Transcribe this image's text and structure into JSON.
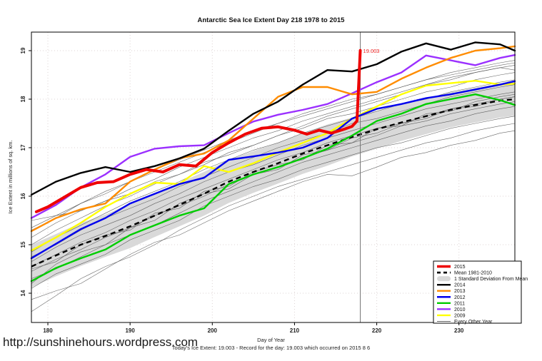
{
  "page": {
    "url_watermark": "http://sunshinehours.wordpress.com"
  },
  "chart_data": {
    "type": "line",
    "title": "Antarctic Sea Ice Extent Day 218 1978 to 2015",
    "xlabel": "Day of Year",
    "ylabel": "Ice Extent in millions of sq. km.",
    "status_line": "Today's Ice Extent: 19.003  - Record for the day: 19.003 which occurred on 2015 8 6",
    "x_ticks": [
      180,
      190,
      200,
      210,
      220,
      230
    ],
    "y_ticks": [
      14,
      15,
      16,
      17,
      18,
      19
    ],
    "x_range": [
      178,
      236.8
    ],
    "y_range": [
      13.4,
      19.39
    ],
    "grid": true,
    "legend_position": "bottom-right",
    "vline_day": 218,
    "annotation": {
      "text": "19.003",
      "day": 218,
      "value": 19.003,
      "color": "#ee2222"
    },
    "colors": {
      "y2015": "#ee0000",
      "y2014": "#000000",
      "y2013": "#ff8c00",
      "y2012": "#0000ee",
      "y2011": "#00cd00",
      "y2010": "#9b30ff",
      "y2009": "#ffff00",
      "mean": "#000000",
      "band": "#d9d9d9",
      "other": "#4d4d4d",
      "gridline": "#dcd3d3",
      "vline": "#777777"
    },
    "days_grid": [
      178,
      181,
      184,
      187,
      190,
      193,
      196,
      199,
      202,
      205,
      208,
      211,
      214,
      217,
      220,
      223,
      226,
      229,
      232,
      235,
      236.8
    ],
    "band": {
      "label": "1 Standard Deviation From Mean",
      "upper": [
        15.0,
        15.22,
        15.45,
        15.62,
        15.85,
        16.05,
        16.28,
        16.5,
        16.75,
        16.93,
        17.1,
        17.3,
        17.48,
        17.62,
        17.76,
        17.9,
        18.02,
        18.14,
        18.24,
        18.32,
        18.35
      ],
      "lower": [
        14.12,
        14.35,
        14.56,
        14.75,
        14.93,
        15.16,
        15.38,
        15.6,
        15.86,
        16.07,
        16.26,
        16.46,
        16.63,
        16.82,
        16.98,
        17.14,
        17.28,
        17.42,
        17.52,
        17.62,
        17.66
      ]
    },
    "mean": {
      "label": "Mean 1981-2010",
      "values": [
        14.55,
        14.78,
        15.0,
        15.18,
        15.38,
        15.6,
        15.82,
        16.05,
        16.3,
        16.5,
        16.68,
        16.88,
        17.05,
        17.22,
        17.38,
        17.52,
        17.65,
        17.78,
        17.88,
        17.97,
        18.0
      ]
    },
    "series": [
      {
        "name": "2009",
        "color_key": "y2009",
        "width": 2.4,
        "values": [
          14.88,
          15.15,
          15.45,
          15.78,
          16.05,
          16.28,
          16.25,
          16.62,
          16.5,
          16.68,
          16.9,
          17.1,
          17.3,
          17.6,
          17.85,
          18.1,
          18.28,
          18.33,
          18.38,
          18.3,
          18.32
        ]
      },
      {
        "name": "2011",
        "color_key": "y2011",
        "width": 2.4,
        "values": [
          14.25,
          14.52,
          14.72,
          14.9,
          15.2,
          15.4,
          15.6,
          15.75,
          16.25,
          16.45,
          16.6,
          16.78,
          16.98,
          17.25,
          17.55,
          17.7,
          17.9,
          18.0,
          18.1,
          17.98,
          17.88
        ]
      },
      {
        "name": "2012",
        "color_key": "y2012",
        "width": 2.4,
        "values": [
          14.72,
          15.02,
          15.32,
          15.55,
          15.85,
          16.05,
          16.25,
          16.38,
          16.75,
          16.82,
          16.9,
          17.0,
          17.2,
          17.6,
          17.8,
          17.9,
          18.02,
          18.1,
          18.2,
          18.3,
          18.37
        ]
      },
      {
        "name": "2010",
        "color_key": "y2010",
        "width": 2.4,
        "values": [
          15.55,
          15.82,
          16.18,
          16.45,
          16.81,
          16.98,
          17.03,
          17.05,
          17.3,
          17.54,
          17.68,
          17.78,
          17.9,
          18.12,
          18.35,
          18.55,
          18.9,
          18.8,
          18.7,
          18.85,
          18.91
        ]
      },
      {
        "name": "2013",
        "color_key": "y2013",
        "width": 2.4,
        "values": [
          15.28,
          15.55,
          15.73,
          15.85,
          16.3,
          16.55,
          16.78,
          16.88,
          17.15,
          17.6,
          18.05,
          18.25,
          18.25,
          18.1,
          18.15,
          18.42,
          18.65,
          18.85,
          19.0,
          19.05,
          19.09
        ]
      },
      {
        "name": "2014",
        "color_key": "y2014",
        "width": 2.4,
        "values": [
          16.03,
          16.3,
          16.48,
          16.6,
          16.5,
          16.62,
          16.78,
          16.98,
          17.35,
          17.7,
          17.95,
          18.3,
          18.6,
          18.57,
          18.72,
          18.98,
          19.15,
          19.02,
          19.17,
          19.13,
          19.0
        ]
      }
    ],
    "series_2015": {
      "name": "2015",
      "color_key": "y2015",
      "width": 4,
      "days": [
        178.6,
        180,
        182,
        184,
        186,
        188,
        190,
        192,
        194,
        196,
        198,
        200,
        202,
        204,
        206,
        208,
        210,
        211.5,
        213,
        214.5,
        216,
        217,
        217.6,
        218
      ],
      "values": [
        15.68,
        15.78,
        15.98,
        16.18,
        16.28,
        16.3,
        16.45,
        16.55,
        16.5,
        16.65,
        16.62,
        16.9,
        17.1,
        17.28,
        17.4,
        17.43,
        17.36,
        17.28,
        17.36,
        17.3,
        17.38,
        17.44,
        17.55,
        19.003
      ]
    },
    "other_years": {
      "label": "Every Other Year",
      "lines": [
        [
          13.62,
          13.95,
          14.3,
          14.55,
          14.75,
          15.0,
          15.3,
          15.55,
          15.8,
          16.0,
          16.2,
          16.35,
          16.5,
          16.65,
          16.8,
          16.95,
          17.1,
          17.2,
          17.35,
          17.45,
          17.5
        ],
        [
          13.87,
          14.05,
          14.2,
          14.5,
          14.8,
          15.05,
          15.2,
          15.45,
          15.7,
          15.9,
          16.1,
          16.3,
          16.45,
          16.42,
          16.6,
          16.8,
          16.9,
          17.05,
          17.15,
          17.3,
          17.35
        ],
        [
          14.1,
          14.4,
          14.6,
          14.8,
          15.1,
          15.3,
          15.5,
          15.8,
          16.0,
          16.2,
          16.35,
          16.55,
          16.7,
          16.85,
          17.0,
          17.1,
          17.25,
          17.4,
          17.5,
          17.6,
          17.65
        ],
        [
          14.3,
          14.5,
          14.75,
          15.0,
          15.2,
          15.4,
          15.65,
          15.9,
          16.1,
          16.3,
          16.5,
          16.7,
          16.85,
          17.0,
          17.15,
          17.3,
          17.45,
          17.55,
          17.7,
          17.8,
          17.85
        ],
        [
          14.45,
          14.7,
          14.9,
          15.15,
          15.35,
          15.6,
          15.8,
          16.0,
          16.25,
          16.45,
          16.6,
          16.8,
          16.95,
          17.1,
          17.25,
          17.45,
          17.55,
          17.7,
          17.8,
          17.9,
          17.95
        ],
        [
          14.55,
          14.8,
          15.05,
          15.25,
          15.5,
          15.7,
          15.95,
          16.15,
          16.35,
          16.55,
          16.75,
          16.9,
          17.1,
          17.25,
          17.4,
          17.5,
          17.65,
          17.8,
          17.9,
          18.0,
          18.05
        ],
        [
          14.65,
          14.95,
          15.2,
          15.4,
          15.6,
          15.85,
          16.05,
          16.3,
          16.5,
          16.65,
          16.85,
          17.05,
          17.2,
          17.35,
          17.5,
          17.65,
          17.8,
          17.9,
          18.0,
          18.1,
          18.15
        ],
        [
          14.75,
          15.0,
          15.3,
          15.55,
          15.75,
          15.95,
          16.2,
          16.4,
          16.6,
          16.8,
          17.0,
          17.15,
          17.3,
          17.5,
          17.6,
          17.75,
          17.9,
          18.05,
          18.15,
          18.25,
          18.3
        ],
        [
          14.85,
          15.15,
          15.4,
          15.65,
          15.9,
          16.1,
          16.3,
          16.55,
          16.75,
          16.95,
          17.1,
          17.3,
          17.45,
          17.6,
          17.75,
          17.9,
          18.0,
          18.15,
          18.25,
          18.35,
          18.4
        ],
        [
          15.0,
          15.3,
          15.55,
          15.8,
          16.0,
          16.25,
          16.45,
          16.65,
          16.9,
          17.05,
          17.25,
          17.4,
          17.6,
          17.7,
          17.85,
          18.0,
          18.15,
          18.25,
          18.4,
          18.5,
          18.55
        ],
        [
          15.15,
          15.45,
          15.7,
          15.9,
          16.15,
          16.35,
          16.6,
          16.8,
          17.0,
          17.2,
          17.35,
          17.55,
          17.7,
          17.85,
          18.0,
          18.15,
          18.3,
          18.4,
          18.55,
          18.65,
          18.7
        ],
        [
          15.35,
          15.6,
          15.85,
          16.1,
          16.3,
          16.55,
          16.75,
          16.95,
          17.15,
          17.35,
          17.5,
          17.7,
          17.85,
          18.0,
          18.1,
          18.25,
          18.4,
          18.5,
          18.6,
          18.7,
          18.75
        ],
        [
          14.2,
          14.6,
          14.85,
          15.0,
          15.35,
          15.5,
          15.85,
          16.05,
          16.15,
          16.45,
          16.55,
          16.85,
          16.95,
          17.2,
          17.3,
          17.5,
          17.6,
          17.8,
          17.85,
          18.0,
          18.05
        ],
        [
          14.5,
          14.65,
          15.0,
          15.2,
          15.3,
          15.65,
          15.75,
          16.1,
          16.2,
          16.5,
          16.65,
          16.75,
          17.05,
          17.1,
          17.4,
          17.45,
          17.7,
          17.75,
          17.95,
          18.05,
          18.1
        ],
        [
          15.5,
          15.6,
          15.7,
          15.9,
          16.05,
          16.3,
          16.45,
          16.7,
          16.85,
          17.05,
          17.25,
          17.45,
          17.65,
          17.8,
          17.95,
          18.1,
          18.3,
          18.45,
          18.55,
          18.65,
          18.6
        ],
        [
          15.3,
          15.55,
          15.85,
          16.05,
          16.3,
          16.5,
          16.7,
          16.9,
          17.1,
          17.3,
          17.5,
          17.65,
          17.8,
          17.95,
          18.1,
          18.25,
          18.4,
          18.55,
          18.65,
          18.75,
          18.8
        ]
      ]
    },
    "legend": [
      {
        "label": "2015",
        "swatch": "thick-line",
        "color_key": "y2015"
      },
      {
        "label": "Mean 1981-2010",
        "swatch": "dashed-line",
        "color_key": "mean"
      },
      {
        "label": "1 Standard Deviation From Mean",
        "swatch": "blob",
        "color_key": "band"
      },
      {
        "label": "2014",
        "swatch": "line",
        "color_key": "y2014"
      },
      {
        "label": "2013",
        "swatch": "line",
        "color_key": "y2013"
      },
      {
        "label": "2012",
        "swatch": "line",
        "color_key": "y2012"
      },
      {
        "label": "2011",
        "swatch": "line",
        "color_key": "y2011"
      },
      {
        "label": "2010",
        "swatch": "line",
        "color_key": "y2010"
      },
      {
        "label": "2009",
        "swatch": "line",
        "color_key": "y2009"
      },
      {
        "label": "Every Other Year",
        "swatch": "thin-line",
        "color_key": "other"
      }
    ]
  }
}
